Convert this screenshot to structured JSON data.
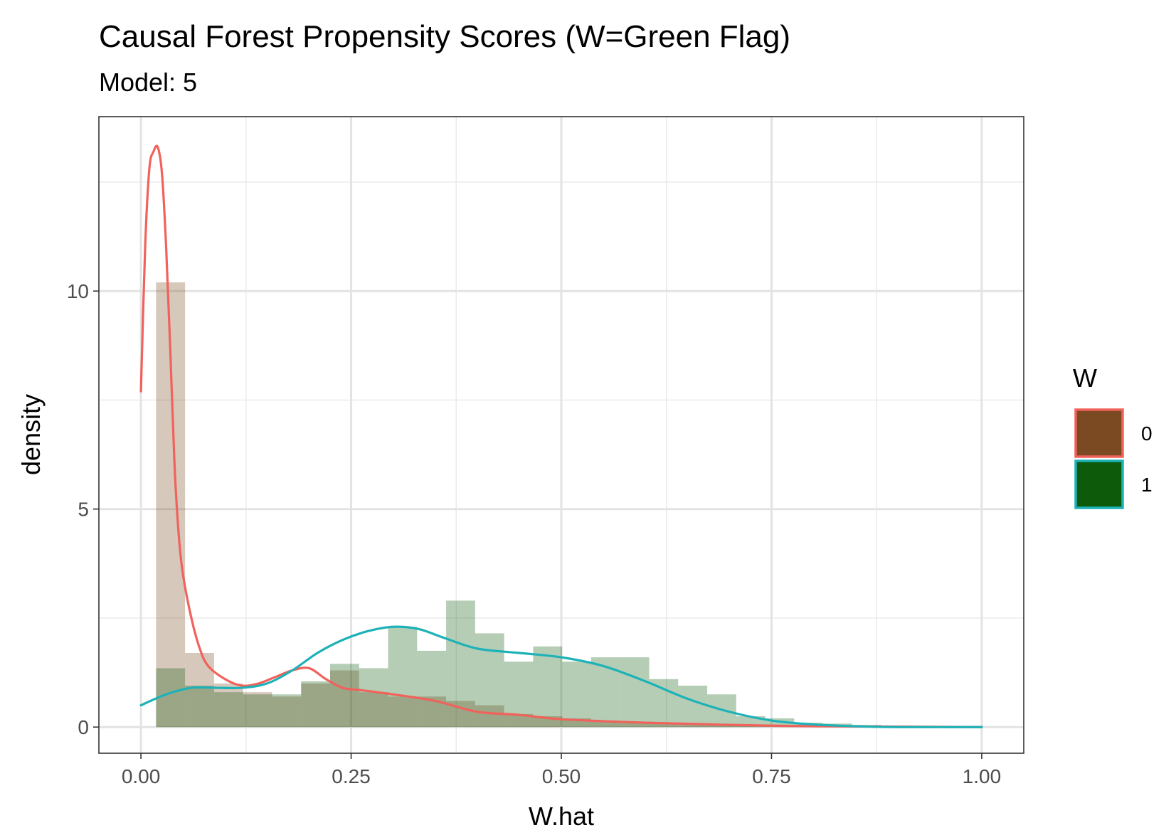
{
  "chart_data": {
    "type": "histogram",
    "title": "Causal Forest Propensity Scores (W=Green Flag)",
    "subtitle": "Model: 5",
    "xlabel": "W.hat",
    "ylabel": "density",
    "xlim": [
      -0.05,
      1.05
    ],
    "ylim": [
      -0.6,
      14.0
    ],
    "x_ticks": [
      {
        "value": 0.0,
        "label": "0.00"
      },
      {
        "value": 0.25,
        "label": "0.25"
      },
      {
        "value": 0.5,
        "label": "0.50"
      },
      {
        "value": 0.75,
        "label": "0.75"
      },
      {
        "value": 1.0,
        "label": "1.00"
      }
    ],
    "y_ticks": [
      {
        "value": 0,
        "label": "0"
      },
      {
        "value": 5,
        "label": "5"
      },
      {
        "value": 10,
        "label": "10"
      }
    ],
    "x_minor": [
      0.125,
      0.375,
      0.625,
      0.875
    ],
    "y_minor": [
      2.5,
      7.5,
      12.5
    ],
    "grid": true,
    "bin_start": 0.018,
    "bin_width": 0.0345,
    "legend": {
      "title": "W",
      "position": "right",
      "entries": [
        {
          "label": "0",
          "fill": "#7B4A22",
          "border": "#F0625B"
        },
        {
          "label": "1",
          "fill": "#0C5A0A",
          "border": "#1DB2B8"
        }
      ]
    },
    "series": [
      {
        "name": "0",
        "hist_fill": "#7B4A22",
        "hist_opacity": 0.3,
        "line_color": "#F0625B",
        "hist": [
          10.2,
          1.7,
          1.0,
          0.8,
          0.7,
          1.0,
          1.3,
          0.8,
          0.7,
          0.7,
          0.6,
          0.5,
          0.3,
          0.25,
          0.2,
          0.15,
          0.1,
          0.08,
          0.05,
          0.05,
          0.03,
          0.02,
          0.02,
          0.01,
          0.01,
          0.01,
          0.01,
          0.0,
          0.0
        ],
        "density_x": [
          0.0,
          0.005,
          0.01,
          0.015,
          0.02,
          0.025,
          0.03,
          0.035,
          0.04,
          0.045,
          0.05,
          0.06,
          0.07,
          0.08,
          0.1,
          0.12,
          0.14,
          0.16,
          0.18,
          0.2,
          0.22,
          0.24,
          0.26,
          0.3,
          0.35,
          0.4,
          0.45,
          0.5,
          0.6,
          0.7,
          0.8,
          0.9,
          1.0
        ],
        "density_y": [
          7.7,
          11.0,
          12.8,
          13.2,
          13.3,
          12.7,
          11.0,
          8.6,
          6.0,
          4.4,
          3.5,
          2.5,
          1.8,
          1.4,
          1.1,
          0.95,
          1.0,
          1.15,
          1.3,
          1.35,
          1.1,
          0.9,
          0.85,
          0.75,
          0.6,
          0.35,
          0.28,
          0.18,
          0.1,
          0.05,
          0.02,
          0.01,
          0.0
        ]
      },
      {
        "name": "1",
        "hist_fill": "#0C5A0A",
        "hist_opacity": 0.3,
        "line_color": "#1DB2B8",
        "hist": [
          1.35,
          0.95,
          0.8,
          0.75,
          0.75,
          1.05,
          1.45,
          1.35,
          2.3,
          1.75,
          2.9,
          2.15,
          1.5,
          1.85,
          1.5,
          1.6,
          1.6,
          1.1,
          0.95,
          0.75,
          0.25,
          0.2,
          0.1,
          0.08,
          0.05,
          0.03,
          0.02,
          0.01,
          0.0
        ],
        "density_x": [
          0.0,
          0.03,
          0.06,
          0.09,
          0.12,
          0.15,
          0.18,
          0.21,
          0.24,
          0.27,
          0.3,
          0.33,
          0.36,
          0.4,
          0.45,
          0.5,
          0.55,
          0.6,
          0.65,
          0.7,
          0.75,
          0.8,
          0.85,
          0.9,
          1.0
        ],
        "density_y": [
          0.5,
          0.75,
          0.9,
          0.9,
          0.9,
          1.0,
          1.3,
          1.7,
          2.0,
          2.2,
          2.3,
          2.25,
          2.05,
          1.8,
          1.7,
          1.6,
          1.4,
          1.05,
          0.65,
          0.35,
          0.15,
          0.06,
          0.02,
          0.0,
          0.0
        ]
      }
    ]
  }
}
